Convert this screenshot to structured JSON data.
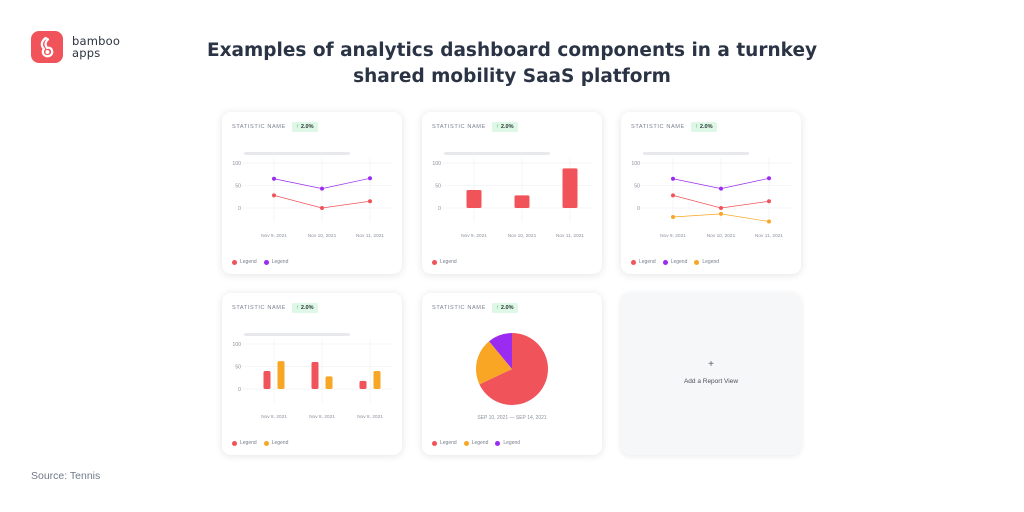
{
  "brand": {
    "line1": "bamboo",
    "line2": "apps"
  },
  "title_line1": "Examples of analytics dashboard components in a turnkey",
  "title_line2": "shared mobility SaaS platform",
  "source": "Source: Tennis",
  "colors": {
    "red": "#f0535a",
    "purple": "#9b2bf0",
    "orange": "#f8a623",
    "grid": "#eceef1",
    "axis": "#8a909c"
  },
  "chart_data": [
    {
      "id": "line-2",
      "type": "line",
      "stat_name": "STATISTIC NAME",
      "badge": "2.0%",
      "categories": [
        "Nov 9, 2021",
        "Nov 10, 2021",
        "Nov 11, 2021"
      ],
      "y_ticks": [
        "100",
        "50",
        "0"
      ],
      "ylim": [
        0,
        100
      ],
      "series": [
        {
          "name": "Legend",
          "color": "#f0535a",
          "values": [
            28,
            0,
            15
          ]
        },
        {
          "name": "Legend",
          "color": "#9b2bf0",
          "values": [
            65,
            43,
            66
          ]
        }
      ]
    },
    {
      "id": "bar-1",
      "type": "bar",
      "stat_name": "STATISTIC NAME",
      "badge": "2.0%",
      "categories": [
        "Nov 9, 2021",
        "Nov 10, 2021",
        "Nov 11, 2021"
      ],
      "y_ticks": [
        "100",
        "50",
        "0"
      ],
      "ylim": [
        0,
        100
      ],
      "series": [
        {
          "name": "Legend",
          "color": "#f0535a",
          "values": [
            40,
            28,
            88
          ]
        }
      ]
    },
    {
      "id": "line-3",
      "type": "line",
      "stat_name": "STATISTIC NAME",
      "badge": "2.0%",
      "categories": [
        "Nov 9, 2021",
        "Nov 10, 2021",
        "Nov 11, 2021"
      ],
      "y_ticks": [
        "100",
        "50",
        "0"
      ],
      "ylim": [
        0,
        100
      ],
      "series": [
        {
          "name": "Legend",
          "color": "#f0535a",
          "values": [
            28,
            0,
            15
          ]
        },
        {
          "name": "Legend",
          "color": "#9b2bf0",
          "values": [
            65,
            43,
            66
          ]
        },
        {
          "name": "Legend",
          "color": "#f8a623",
          "values": [
            -20,
            -13,
            -30
          ]
        }
      ]
    },
    {
      "id": "bar-2",
      "type": "bar",
      "stat_name": "STATISTIC NAME",
      "badge": "2.0%",
      "categories": [
        "Nov 8, 2021",
        "Nov 8, 2021",
        "Nov 8, 2021"
      ],
      "y_ticks": [
        "100",
        "50",
        "0"
      ],
      "ylim": [
        0,
        100
      ],
      "series": [
        {
          "name": "Legend",
          "color": "#f0535a",
          "values": [
            40,
            60,
            18
          ]
        },
        {
          "name": "Legend",
          "color": "#f8a623",
          "values": [
            62,
            28,
            40
          ]
        }
      ]
    },
    {
      "id": "pie-1",
      "type": "pie",
      "stat_name": "STATISTIC NAME",
      "badge": "2.0%",
      "caption": "SEP 10, 2021 — SEP 14, 2021",
      "slices": [
        {
          "name": "Legend",
          "color": "#f0535a",
          "value": 68
        },
        {
          "name": "Legend",
          "color": "#f8a623",
          "value": 21
        },
        {
          "name": "Legend",
          "color": "#9b2bf0",
          "value": 11
        }
      ]
    }
  ],
  "add_card": {
    "plus": "+",
    "label": "Add a Report View"
  }
}
